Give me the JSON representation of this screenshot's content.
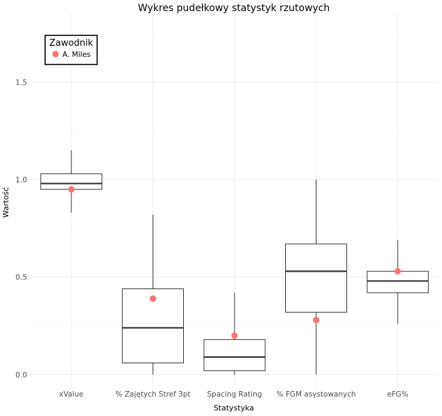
{
  "chart_data": {
    "type": "box",
    "title": "Wykres pudełkowy statystyk rzutowych",
    "xlabel": "Statystyka",
    "ylabel": "Wartość",
    "ylim": [
      -0.07,
      1.85
    ],
    "yticks": [
      0.0,
      0.5,
      1.0,
      1.5
    ],
    "ytick_labels": [
      "0.0",
      "0.5",
      "1.0",
      "1.5"
    ],
    "grid": true,
    "categories": [
      "xValue",
      "% Zajętych Stref 3pt",
      "Spacing Rating",
      "% FGM asystowanych",
      "eFG%"
    ],
    "boxes": [
      {
        "whisker_low": 0.83,
        "q1": 0.95,
        "median": 0.98,
        "q3": 1.03,
        "whisker_high": 1.15
      },
      {
        "whisker_low": 0.0,
        "q1": 0.06,
        "median": 0.24,
        "q3": 0.44,
        "whisker_high": 0.82
      },
      {
        "whisker_low": 0.0,
        "q1": 0.02,
        "median": 0.09,
        "q3": 0.18,
        "whisker_high": 0.42
      },
      {
        "whisker_low": 0.0,
        "q1": 0.32,
        "median": 0.53,
        "q3": 0.67,
        "whisker_high": 1.0
      },
      {
        "whisker_low": 0.26,
        "q1": 0.42,
        "median": 0.48,
        "q3": 0.53,
        "whisker_high": 0.69
      }
    ],
    "series": [
      {
        "name": "A. Miles",
        "color": "#F8766D",
        "values": [
          0.95,
          0.39,
          0.2,
          0.28,
          0.53
        ]
      }
    ],
    "legend": {
      "title": "Zawodnik",
      "position": "top-left"
    }
  }
}
